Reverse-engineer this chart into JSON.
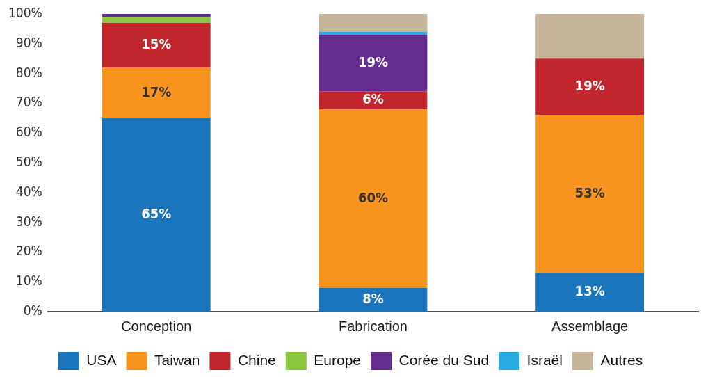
{
  "chart_data": {
    "type": "bar",
    "stacked": true,
    "categories": [
      "Conception",
      "Fabrication",
      "Assemblage"
    ],
    "series": [
      {
        "name": "USA",
        "color": "#1a75bc",
        "values": [
          65,
          8,
          13
        ],
        "value_labels": [
          "65%",
          "8%",
          "13%"
        ]
      },
      {
        "name": "Taiwan",
        "color": "#f7941d",
        "values": [
          17,
          60,
          53
        ],
        "value_labels": [
          "17%",
          "60%",
          "53%"
        ]
      },
      {
        "name": "Chine",
        "color": "#c1272d",
        "values": [
          15,
          6,
          19
        ],
        "value_labels": [
          "15%",
          "6%",
          "19%"
        ]
      },
      {
        "name": "Europe",
        "color": "#8dc63f",
        "values": [
          2,
          0,
          0
        ],
        "value_labels": [
          null,
          null,
          null
        ]
      },
      {
        "name": "Corée du Sud",
        "color": "#662d91",
        "values": [
          1,
          19,
          0
        ],
        "value_labels": [
          null,
          "19%",
          null
        ]
      },
      {
        "name": "Israël",
        "color": "#29abe2",
        "values": [
          0,
          1,
          0
        ],
        "value_labels": [
          null,
          null,
          null
        ]
      },
      {
        "name": "Autres",
        "color": "#c4b59b",
        "values": [
          0,
          6,
          15
        ],
        "value_labels": [
          null,
          null,
          null
        ]
      }
    ],
    "ylim": [
      0,
      100
    ],
    "yticks": [
      {
        "value": 0,
        "label": "0%"
      },
      {
        "value": 10,
        "label": "10%"
      },
      {
        "value": 20,
        "label": "20%"
      },
      {
        "value": 30,
        "label": "30%"
      },
      {
        "value": 40,
        "label": "40%"
      },
      {
        "value": 50,
        "label": "50%"
      },
      {
        "value": 60,
        "label": "60%"
      },
      {
        "value": 70,
        "label": "70%"
      },
      {
        "value": 80,
        "label": "80%"
      },
      {
        "value": 90,
        "label": "90%"
      },
      {
        "value": 100,
        "label": "100%"
      }
    ],
    "grid": false,
    "legend": "bottom"
  }
}
